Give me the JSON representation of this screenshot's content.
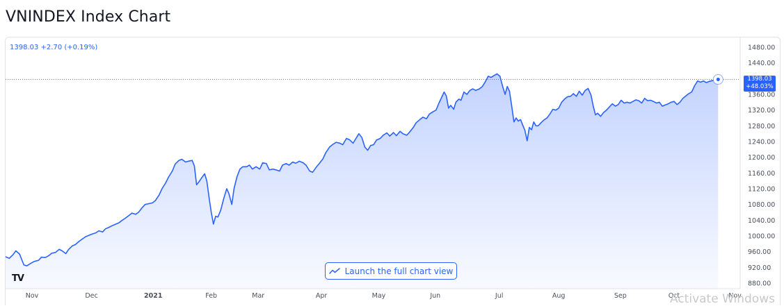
{
  "page": {
    "title": "VNINDEX Index Chart"
  },
  "legend": {
    "text": "1398.03 +2.70 (+0.19%)"
  },
  "price_tag": {
    "price": "1398.03",
    "change": "+48.03%"
  },
  "launch_button": {
    "label": "Launch the full chart view",
    "icon": "chart-line-icon"
  },
  "logo": {
    "text": "TV"
  },
  "watermark": {
    "text": "Activate Windows"
  },
  "colors": {
    "line": "#2962ff",
    "fill": "#2962ff",
    "axis_text": "#4a4f5c",
    "grid": "#e0e3eb"
  },
  "chart_data": {
    "type": "area",
    "title": "VNINDEX Index Chart",
    "ylim": [
      880,
      1480
    ],
    "y_ticks": [
      "1480.00",
      "1440.00",
      "1400.00",
      "1360.00",
      "1320.00",
      "1280.00",
      "1240.00",
      "1200.00",
      "1160.00",
      "1120.00",
      "1080.00",
      "1040.00",
      "1000.00",
      "960.00",
      "920.00",
      "880.00"
    ],
    "x_ticks": [
      {
        "label": "Nov",
        "x": 0.036
      },
      {
        "label": "Dec",
        "x": 0.117
      },
      {
        "label": "2021",
        "x": 0.201
      },
      {
        "label": "Feb",
        "x": 0.28
      },
      {
        "label": "Mar",
        "x": 0.344
      },
      {
        "label": "Apr",
        "x": 0.43
      },
      {
        "label": "May",
        "x": 0.508
      },
      {
        "label": "Jun",
        "x": 0.585
      },
      {
        "label": "Jul",
        "x": 0.672
      },
      {
        "label": "Aug",
        "x": 0.753
      },
      {
        "label": "Sep",
        "x": 0.837
      },
      {
        "label": "Oct",
        "x": 0.91
      },
      {
        "label": "Nov",
        "x": 0.993
      }
    ],
    "last_value": 1398.03,
    "grid": false,
    "series": [
      {
        "values": [
          [
            0.0,
            947
          ],
          [
            0.005,
            943
          ],
          [
            0.01,
            952
          ],
          [
            0.014,
            962
          ],
          [
            0.019,
            954
          ],
          [
            0.022,
            940
          ],
          [
            0.025,
            926
          ],
          [
            0.029,
            924
          ],
          [
            0.034,
            930
          ],
          [
            0.039,
            935
          ],
          [
            0.045,
            938
          ],
          [
            0.049,
            946
          ],
          [
            0.054,
            945
          ],
          [
            0.059,
            950
          ],
          [
            0.063,
            956
          ],
          [
            0.068,
            958
          ],
          [
            0.073,
            966
          ],
          [
            0.077,
            962
          ],
          [
            0.082,
            955
          ],
          [
            0.086,
            966
          ],
          [
            0.091,
            975
          ],
          [
            0.095,
            978
          ],
          [
            0.1,
            986
          ],
          [
            0.105,
            993
          ],
          [
            0.109,
            998
          ],
          [
            0.114,
            1002
          ],
          [
            0.118,
            1005
          ],
          [
            0.123,
            1008
          ],
          [
            0.127,
            1013
          ],
          [
            0.132,
            1010
          ],
          [
            0.136,
            1018
          ],
          [
            0.141,
            1022
          ],
          [
            0.145,
            1026
          ],
          [
            0.15,
            1030
          ],
          [
            0.154,
            1033
          ],
          [
            0.159,
            1040
          ],
          [
            0.163,
            1045
          ],
          [
            0.168,
            1052
          ],
          [
            0.172,
            1058
          ],
          [
            0.177,
            1055
          ],
          [
            0.181,
            1060
          ],
          [
            0.186,
            1072
          ],
          [
            0.19,
            1080
          ],
          [
            0.195,
            1082
          ],
          [
            0.2,
            1084
          ],
          [
            0.204,
            1090
          ],
          [
            0.209,
            1104
          ],
          [
            0.213,
            1120
          ],
          [
            0.218,
            1135
          ],
          [
            0.222,
            1150
          ],
          [
            0.227,
            1165
          ],
          [
            0.231,
            1183
          ],
          [
            0.236,
            1192
          ],
          [
            0.24,
            1195
          ],
          [
            0.245,
            1188
          ],
          [
            0.249,
            1190
          ],
          [
            0.254,
            1192
          ],
          [
            0.257,
            1178
          ],
          [
            0.26,
            1130
          ],
          [
            0.263,
            1137
          ],
          [
            0.267,
            1148
          ],
          [
            0.271,
            1158
          ],
          [
            0.274,
            1140
          ],
          [
            0.277,
            1098
          ],
          [
            0.28,
            1060
          ],
          [
            0.283,
            1030
          ],
          [
            0.286,
            1050
          ],
          [
            0.289,
            1048
          ],
          [
            0.293,
            1066
          ],
          [
            0.297,
            1095
          ],
          [
            0.301,
            1120
          ],
          [
            0.304,
            1108
          ],
          [
            0.308,
            1080
          ],
          [
            0.311,
            1120
          ],
          [
            0.315,
            1150
          ],
          [
            0.319,
            1170
          ],
          [
            0.323,
            1176
          ],
          [
            0.328,
            1176
          ],
          [
            0.332,
            1180
          ],
          [
            0.336,
            1170
          ],
          [
            0.341,
            1176
          ],
          [
            0.346,
            1170
          ],
          [
            0.35,
            1186
          ],
          [
            0.355,
            1184
          ],
          [
            0.359,
            1168
          ],
          [
            0.364,
            1170
          ],
          [
            0.368,
            1168
          ],
          [
            0.373,
            1165
          ],
          [
            0.377,
            1180
          ],
          [
            0.382,
            1184
          ],
          [
            0.386,
            1180
          ],
          [
            0.391,
            1188
          ],
          [
            0.395,
            1185
          ],
          [
            0.4,
            1190
          ],
          [
            0.405,
            1186
          ],
          [
            0.409,
            1180
          ],
          [
            0.414,
            1165
          ],
          [
            0.418,
            1162
          ],
          [
            0.423,
            1175
          ],
          [
            0.427,
            1184
          ],
          [
            0.432,
            1196
          ],
          [
            0.436,
            1212
          ],
          [
            0.441,
            1226
          ],
          [
            0.445,
            1232
          ],
          [
            0.45,
            1238
          ],
          [
            0.455,
            1236
          ],
          [
            0.459,
            1232
          ],
          [
            0.464,
            1248
          ],
          [
            0.468,
            1245
          ],
          [
            0.473,
            1236
          ],
          [
            0.477,
            1248
          ],
          [
            0.481,
            1260
          ],
          [
            0.485,
            1250
          ],
          [
            0.489,
            1226
          ],
          [
            0.493,
            1218
          ],
          [
            0.497,
            1230
          ],
          [
            0.501,
            1232
          ],
          [
            0.505,
            1244
          ],
          [
            0.51,
            1248
          ],
          [
            0.514,
            1256
          ],
          [
            0.519,
            1262
          ],
          [
            0.523,
            1254
          ],
          [
            0.528,
            1263
          ],
          [
            0.532,
            1255
          ],
          [
            0.537,
            1266
          ],
          [
            0.541,
            1260
          ],
          [
            0.546,
            1256
          ],
          [
            0.55,
            1264
          ],
          [
            0.555,
            1276
          ],
          [
            0.559,
            1288
          ],
          [
            0.564,
            1296
          ],
          [
            0.568,
            1302
          ],
          [
            0.573,
            1298
          ],
          [
            0.577,
            1310
          ],
          [
            0.582,
            1316
          ],
          [
            0.586,
            1320
          ],
          [
            0.59,
            1338
          ],
          [
            0.594,
            1354
          ],
          [
            0.597,
            1366
          ],
          [
            0.6,
            1356
          ],
          [
            0.603,
            1325
          ],
          [
            0.606,
            1332
          ],
          [
            0.61,
            1322
          ],
          [
            0.613,
            1340
          ],
          [
            0.617,
            1348
          ],
          [
            0.62,
            1345
          ],
          [
            0.624,
            1366
          ],
          [
            0.628,
            1360
          ],
          [
            0.632,
            1370
          ],
          [
            0.636,
            1374
          ],
          [
            0.64,
            1370
          ],
          [
            0.645,
            1374
          ],
          [
            0.649,
            1380
          ],
          [
            0.653,
            1392
          ],
          [
            0.657,
            1406
          ],
          [
            0.661,
            1403
          ],
          [
            0.665,
            1408
          ],
          [
            0.669,
            1412
          ],
          [
            0.673,
            1406
          ],
          [
            0.677,
            1378
          ],
          [
            0.68,
            1360
          ],
          [
            0.683,
            1380
          ],
          [
            0.686,
            1368
          ],
          [
            0.689,
            1330
          ],
          [
            0.692,
            1290
          ],
          [
            0.695,
            1300
          ],
          [
            0.698,
            1292
          ],
          [
            0.701,
            1296
          ],
          [
            0.704,
            1282
          ],
          [
            0.707,
            1268
          ],
          [
            0.71,
            1242
          ],
          [
            0.713,
            1276
          ],
          [
            0.716,
            1270
          ],
          [
            0.719,
            1290
          ],
          [
            0.722,
            1280
          ],
          [
            0.725,
            1280
          ],
          [
            0.729,
            1288
          ],
          [
            0.733,
            1295
          ],
          [
            0.737,
            1300
          ],
          [
            0.741,
            1310
          ],
          [
            0.745,
            1322
          ],
          [
            0.749,
            1320
          ],
          [
            0.753,
            1325
          ],
          [
            0.757,
            1340
          ],
          [
            0.761,
            1348
          ],
          [
            0.765,
            1354
          ],
          [
            0.769,
            1355
          ],
          [
            0.773,
            1362
          ],
          [
            0.777,
            1355
          ],
          [
            0.781,
            1368
          ],
          [
            0.785,
            1358
          ],
          [
            0.789,
            1370
          ],
          [
            0.793,
            1375
          ],
          [
            0.797,
            1358
          ],
          [
            0.8,
            1330
          ],
          [
            0.803,
            1308
          ],
          [
            0.806,
            1312
          ],
          [
            0.81,
            1304
          ],
          [
            0.814,
            1314
          ],
          [
            0.818,
            1320
          ],
          [
            0.822,
            1328
          ],
          [
            0.826,
            1336
          ],
          [
            0.83,
            1330
          ],
          [
            0.834,
            1334
          ],
          [
            0.838,
            1345
          ],
          [
            0.842,
            1338
          ],
          [
            0.846,
            1340
          ],
          [
            0.85,
            1338
          ],
          [
            0.854,
            1342
          ],
          [
            0.858,
            1346
          ],
          [
            0.862,
            1344
          ],
          [
            0.866,
            1338
          ],
          [
            0.87,
            1350
          ],
          [
            0.874,
            1344
          ],
          [
            0.878,
            1345
          ],
          [
            0.882,
            1342
          ],
          [
            0.886,
            1338
          ],
          [
            0.89,
            1340
          ],
          [
            0.894,
            1330
          ],
          [
            0.898,
            1333
          ],
          [
            0.902,
            1336
          ],
          [
            0.906,
            1340
          ],
          [
            0.91,
            1342
          ],
          [
            0.914,
            1334
          ],
          [
            0.918,
            1340
          ],
          [
            0.922,
            1350
          ],
          [
            0.926,
            1356
          ],
          [
            0.93,
            1362
          ],
          [
            0.934,
            1366
          ],
          [
            0.938,
            1382
          ],
          [
            0.942,
            1394
          ],
          [
            0.946,
            1391
          ],
          [
            0.95,
            1394
          ],
          [
            0.954,
            1390
          ],
          [
            0.958,
            1393
          ],
          [
            0.962,
            1395
          ],
          [
            0.966,
            1396
          ],
          [
            0.97,
            1398.03
          ]
        ]
      }
    ]
  }
}
